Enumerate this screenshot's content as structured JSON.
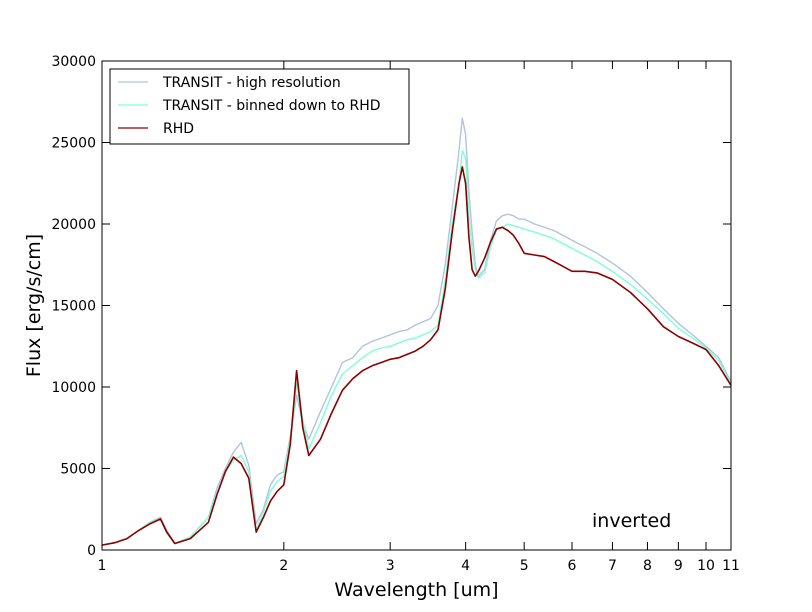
{
  "chart_data": {
    "type": "line",
    "title": "",
    "xlabel": "Wavelength [um]",
    "ylabel": "Flux [erg/s/cm]",
    "x_scale": "log",
    "xlim": [
      1,
      11
    ],
    "ylim": [
      0,
      30000
    ],
    "x_ticks": [
      1,
      2,
      3,
      4,
      5,
      6,
      7,
      8,
      9,
      10,
      11
    ],
    "y_ticks": [
      0,
      5000,
      10000,
      15000,
      20000,
      25000,
      30000
    ],
    "grid": false,
    "legend_position": "top-left",
    "annotation": "inverted",
    "series": [
      {
        "name": "TRANSIT - high resolution",
        "color": "#b0c4de",
        "x": [
          1.0,
          1.05,
          1.1,
          1.15,
          1.2,
          1.25,
          1.28,
          1.32,
          1.4,
          1.5,
          1.55,
          1.6,
          1.65,
          1.7,
          1.75,
          1.8,
          1.85,
          1.9,
          1.95,
          2.0,
          2.05,
          2.1,
          2.15,
          2.2,
          2.3,
          2.4,
          2.5,
          2.6,
          2.7,
          2.8,
          2.9,
          3.0,
          3.1,
          3.2,
          3.3,
          3.4,
          3.5,
          3.6,
          3.7,
          3.8,
          3.9,
          3.95,
          4.0,
          4.05,
          4.1,
          4.15,
          4.2,
          4.3,
          4.4,
          4.5,
          4.6,
          4.7,
          4.8,
          4.9,
          5.0,
          5.2,
          5.4,
          5.6,
          5.8,
          6.0,
          6.3,
          6.6,
          7.0,
          7.5,
          8.0,
          8.5,
          9.0,
          9.5,
          10.0,
          10.5,
          11.0
        ],
        "y": [
          300,
          450,
          700,
          1200,
          1700,
          2000,
          1200,
          400,
          800,
          2000,
          3800,
          5000,
          6000,
          6600,
          5200,
          1600,
          2500,
          4000,
          4600,
          4800,
          7000,
          9500,
          7800,
          6800,
          8500,
          10000,
          11500,
          11800,
          12500,
          12800,
          13000,
          13200,
          13400,
          13500,
          13800,
          14000,
          14200,
          15000,
          17500,
          21000,
          24500,
          26500,
          25500,
          22000,
          19500,
          17500,
          16800,
          17200,
          19000,
          20200,
          20500,
          20600,
          20500,
          20300,
          20300,
          20000,
          19800,
          19600,
          19300,
          19000,
          18600,
          18200,
          17600,
          16800,
          15800,
          14800,
          13900,
          13200,
          12500,
          11800,
          10300
        ]
      },
      {
        "name": "TRANSIT - binned down to RHD",
        "color": "#7fffd4",
        "x": [
          1.0,
          1.05,
          1.1,
          1.15,
          1.2,
          1.25,
          1.28,
          1.32,
          1.4,
          1.5,
          1.55,
          1.6,
          1.65,
          1.7,
          1.75,
          1.8,
          1.85,
          1.9,
          1.95,
          2.0,
          2.05,
          2.1,
          2.15,
          2.2,
          2.3,
          2.4,
          2.5,
          2.6,
          2.7,
          2.8,
          2.9,
          3.0,
          3.1,
          3.2,
          3.3,
          3.4,
          3.5,
          3.6,
          3.7,
          3.8,
          3.9,
          3.95,
          4.0,
          4.05,
          4.1,
          4.15,
          4.2,
          4.3,
          4.4,
          4.5,
          4.6,
          4.7,
          4.8,
          4.9,
          5.0,
          5.2,
          5.4,
          5.6,
          5.8,
          6.0,
          6.3,
          6.6,
          7.0,
          7.5,
          8.0,
          8.5,
          9.0,
          9.5,
          10.0,
          10.5,
          11.0
        ],
        "y": [
          300,
          450,
          700,
          1200,
          1700,
          1900,
          1000,
          400,
          800,
          2000,
          3500,
          4800,
          5500,
          5800,
          4800,
          1200,
          2300,
          3600,
          4200,
          4500,
          6800,
          10200,
          8000,
          6200,
          7800,
          9500,
          10800,
          11300,
          11800,
          12200,
          12400,
          12500,
          12700,
          12900,
          13000,
          13200,
          13400,
          13800,
          16500,
          20000,
          22500,
          24500,
          24000,
          20500,
          18500,
          17200,
          16700,
          17000,
          18600,
          19600,
          19800,
          20000,
          19900,
          19800,
          19700,
          19500,
          19300,
          19100,
          18800,
          18500,
          18100,
          17700,
          17100,
          16300,
          15400,
          14500,
          13600,
          13000,
          12400,
          11600,
          10200
        ]
      },
      {
        "name": "RHD",
        "color": "#8b0000",
        "x": [
          1.0,
          1.05,
          1.1,
          1.15,
          1.2,
          1.25,
          1.28,
          1.32,
          1.4,
          1.5,
          1.55,
          1.6,
          1.65,
          1.7,
          1.75,
          1.8,
          1.85,
          1.9,
          1.95,
          2.0,
          2.05,
          2.1,
          2.15,
          2.2,
          2.3,
          2.4,
          2.5,
          2.6,
          2.7,
          2.8,
          2.9,
          3.0,
          3.1,
          3.2,
          3.3,
          3.4,
          3.5,
          3.6,
          3.7,
          3.8,
          3.9,
          3.95,
          4.0,
          4.05,
          4.1,
          4.15,
          4.2,
          4.3,
          4.4,
          4.5,
          4.6,
          4.7,
          4.8,
          4.9,
          5.0,
          5.2,
          5.4,
          5.6,
          5.8,
          6.0,
          6.3,
          6.6,
          7.0,
          7.5,
          8.0,
          8.5,
          9.0,
          9.5,
          10.0,
          10.5,
          11.0
        ],
        "y": [
          300,
          450,
          700,
          1200,
          1600,
          1900,
          1100,
          400,
          700,
          1700,
          3400,
          4800,
          5700,
          5300,
          4400,
          1100,
          2000,
          3000,
          3600,
          4000,
          6500,
          11000,
          7500,
          5800,
          6800,
          8400,
          9800,
          10500,
          11000,
          11300,
          11500,
          11700,
          11800,
          12000,
          12200,
          12500,
          12900,
          13500,
          16000,
          19500,
          22500,
          23500,
          22500,
          19200,
          17200,
          16800,
          17100,
          17900,
          18900,
          19700,
          19800,
          19600,
          19300,
          18800,
          18200,
          18100,
          18000,
          17700,
          17400,
          17100,
          17100,
          17000,
          16600,
          15800,
          14800,
          13700,
          13100,
          12700,
          12300,
          11300,
          10100
        ]
      }
    ]
  }
}
